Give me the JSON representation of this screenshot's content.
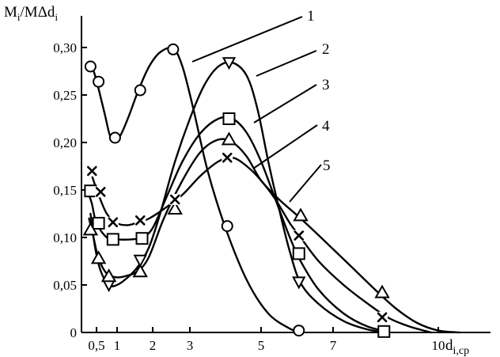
{
  "chart_data": {
    "type": "line",
    "ylabel_main": "M",
    "ylabel_sub1": "i",
    "ylabel_mid": "/MΔd",
    "ylabel_sub2": "i",
    "xlabel_main": "d",
    "xlabel_sub": "i,cp",
    "ylim": [
      0,
      0.34
    ],
    "xlim": [
      0,
      11.3
    ],
    "y_ticks": [
      {
        "v": 0,
        "label": "0"
      },
      {
        "v": 0.05,
        "label": "0,05"
      },
      {
        "v": 0.1,
        "label": "0,10"
      },
      {
        "v": 0.15,
        "label": "0,15"
      },
      {
        "v": 0.2,
        "label": "0,20"
      },
      {
        "v": 0.25,
        "label": "0,25"
      },
      {
        "v": 0.3,
        "label": "0,30"
      }
    ],
    "x_ticks": [
      {
        "v": 0.5,
        "label": "0,5"
      },
      {
        "v": 1,
        "label": "1"
      },
      {
        "v": 2,
        "label": "2"
      },
      {
        "v": 3,
        "label": "3"
      },
      {
        "v": 5,
        "label": "5"
      },
      {
        "v": 7,
        "label": "7"
      },
      {
        "v": 10,
        "label": "10"
      }
    ],
    "series": [
      {
        "label": "1",
        "marker": "circle",
        "curve": [
          [
            0.25,
            0.285
          ],
          [
            0.35,
            0.28
          ],
          [
            0.5,
            0.265
          ],
          [
            0.7,
            0.23
          ],
          [
            0.85,
            0.205
          ],
          [
            1.05,
            0.205
          ],
          [
            1.3,
            0.225
          ],
          [
            1.6,
            0.255
          ],
          [
            1.9,
            0.28
          ],
          [
            2.2,
            0.295
          ],
          [
            2.55,
            0.299
          ],
          [
            2.8,
            0.28
          ],
          [
            3.1,
            0.235
          ],
          [
            3.5,
            0.17
          ],
          [
            4.0,
            0.11
          ],
          [
            4.6,
            0.055
          ],
          [
            5.2,
            0.02
          ],
          [
            5.8,
            0.004
          ],
          [
            6.1,
            0
          ]
        ],
        "points": [
          [
            0.3,
            0.28
          ],
          [
            0.55,
            0.264
          ],
          [
            0.95,
            0.205
          ],
          [
            1.65,
            0.255
          ],
          [
            2.55,
            0.298
          ],
          [
            4.05,
            0.112
          ],
          [
            6.05,
            0.002
          ]
        ]
      },
      {
        "label": "2",
        "marker": "triangle-down",
        "curve": [
          [
            0.3,
            0.125
          ],
          [
            0.45,
            0.09
          ],
          [
            0.6,
            0.065
          ],
          [
            0.8,
            0.05
          ],
          [
            1.0,
            0.05
          ],
          [
            1.3,
            0.058
          ],
          [
            1.6,
            0.07
          ],
          [
            1.9,
            0.09
          ],
          [
            2.2,
            0.125
          ],
          [
            2.6,
            0.18
          ],
          [
            3.0,
            0.225
          ],
          [
            3.4,
            0.26
          ],
          [
            3.8,
            0.28
          ],
          [
            4.2,
            0.284
          ],
          [
            4.6,
            0.27
          ],
          [
            4.9,
            0.235
          ],
          [
            5.2,
            0.18
          ],
          [
            5.5,
            0.13
          ],
          [
            5.8,
            0.085
          ],
          [
            6.1,
            0.052
          ],
          [
            6.6,
            0.03
          ],
          [
            7.3,
            0.012
          ],
          [
            8.0,
            0.003
          ],
          [
            8.6,
            0
          ]
        ],
        "points": [
          [
            0.8,
            0.05
          ],
          [
            1.65,
            0.076
          ],
          [
            4.1,
            0.284
          ],
          [
            6.05,
            0.053
          ]
        ]
      },
      {
        "label": "3",
        "marker": "square",
        "curve": [
          [
            0.25,
            0.145
          ],
          [
            0.35,
            0.135
          ],
          [
            0.5,
            0.115
          ],
          [
            0.75,
            0.1
          ],
          [
            1.0,
            0.098
          ],
          [
            1.4,
            0.098
          ],
          [
            1.7,
            0.1
          ],
          [
            2.0,
            0.11
          ],
          [
            2.4,
            0.145
          ],
          [
            2.8,
            0.18
          ],
          [
            3.3,
            0.21
          ],
          [
            3.8,
            0.225
          ],
          [
            4.2,
            0.225
          ],
          [
            4.6,
            0.21
          ],
          [
            5.0,
            0.18
          ],
          [
            5.4,
            0.14
          ],
          [
            5.8,
            0.1
          ],
          [
            6.1,
            0.075
          ],
          [
            6.6,
            0.045
          ],
          [
            7.3,
            0.02
          ],
          [
            8.0,
            0.006
          ],
          [
            8.6,
            0.001
          ]
        ],
        "points": [
          [
            0.3,
            0.149
          ],
          [
            0.55,
            0.115
          ],
          [
            0.9,
            0.098
          ],
          [
            1.7,
            0.099
          ],
          [
            4.1,
            0.225
          ],
          [
            6.05,
            0.083
          ],
          [
            8.45,
            0.001
          ]
        ]
      },
      {
        "label": "4",
        "marker": "triangle-up",
        "curve": [
          [
            0.25,
            0.12
          ],
          [
            0.4,
            0.1
          ],
          [
            0.55,
            0.078
          ],
          [
            0.75,
            0.062
          ],
          [
            1.0,
            0.058
          ],
          [
            1.3,
            0.06
          ],
          [
            1.6,
            0.065
          ],
          [
            1.9,
            0.08
          ],
          [
            2.3,
            0.12
          ],
          [
            2.8,
            0.16
          ],
          [
            3.3,
            0.19
          ],
          [
            3.8,
            0.203
          ],
          [
            4.2,
            0.2
          ],
          [
            4.6,
            0.185
          ],
          [
            5.0,
            0.16
          ],
          [
            5.5,
            0.14
          ],
          [
            6.1,
            0.12
          ],
          [
            6.8,
            0.095
          ],
          [
            7.5,
            0.07
          ],
          [
            8.2,
            0.045
          ],
          [
            8.8,
            0.025
          ],
          [
            9.4,
            0.01
          ],
          [
            10.0,
            0.002
          ],
          [
            10.6,
            0
          ]
        ],
        "points": [
          [
            0.3,
            0.108
          ],
          [
            0.55,
            0.078
          ],
          [
            0.8,
            0.059
          ],
          [
            1.65,
            0.064
          ],
          [
            2.6,
            0.13
          ],
          [
            4.1,
            0.203
          ],
          [
            6.1,
            0.123
          ],
          [
            8.4,
            0.042
          ]
        ]
      },
      {
        "label": "5",
        "marker": "cross",
        "curve": [
          [
            0.25,
            0.175
          ],
          [
            0.4,
            0.16
          ],
          [
            0.55,
            0.145
          ],
          [
            0.75,
            0.125
          ],
          [
            1.0,
            0.115
          ],
          [
            1.3,
            0.113
          ],
          [
            1.6,
            0.116
          ],
          [
            1.9,
            0.12
          ],
          [
            2.3,
            0.13
          ],
          [
            2.8,
            0.145
          ],
          [
            3.3,
            0.165
          ],
          [
            3.8,
            0.18
          ],
          [
            4.2,
            0.184
          ],
          [
            4.6,
            0.175
          ],
          [
            5.0,
            0.16
          ],
          [
            5.4,
            0.14
          ],
          [
            5.8,
            0.115
          ],
          [
            6.1,
            0.1
          ],
          [
            6.6,
            0.075
          ],
          [
            7.3,
            0.05
          ],
          [
            8.0,
            0.03
          ],
          [
            8.6,
            0.015
          ],
          [
            9.2,
            0.006
          ],
          [
            9.8,
            0
          ]
        ],
        "points": [
          [
            0.35,
            0.17
          ],
          [
            0.6,
            0.148
          ],
          [
            0.9,
            0.116
          ],
          [
            1.65,
            0.118
          ],
          [
            2.6,
            0.14
          ],
          [
            4.05,
            0.184
          ],
          [
            6.05,
            0.102
          ],
          [
            8.4,
            0.016
          ]
        ]
      }
    ]
  }
}
